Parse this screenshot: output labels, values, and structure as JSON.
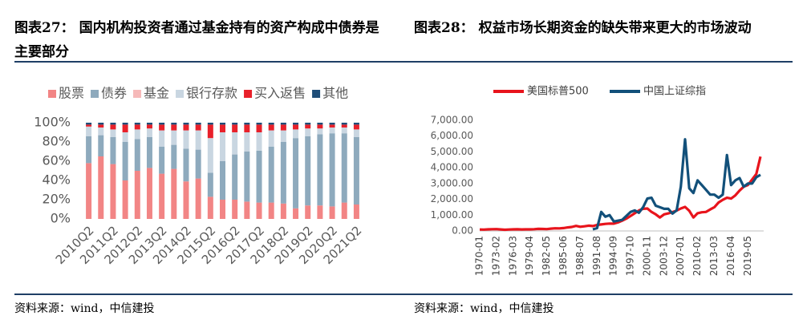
{
  "chart_data": [
    {
      "type": "bar",
      "stacked": true,
      "title": "图表27： 国内机构投资者通过基金持有的资产构成中债券是主要部分",
      "source": "资料来源：wind，中信建投",
      "categories": [
        "2010Q2",
        null,
        "2011Q2",
        null,
        "2012Q2",
        null,
        "2013Q2",
        null,
        "2014Q2",
        null,
        "2015Q2",
        null,
        "2016Q2",
        null,
        "2017Q2",
        null,
        "2018Q2",
        null,
        "2019Q2",
        null,
        "2020Q2",
        null,
        "2021Q2"
      ],
      "series": [
        {
          "name": "股票",
          "color": "#f28585",
          "values": [
            58,
            65,
            57,
            40,
            50,
            53,
            47,
            52,
            39,
            42,
            23,
            20,
            20,
            18,
            17,
            17,
            16,
            11,
            14,
            14,
            13,
            17,
            15
          ]
        },
        {
          "name": "债券",
          "color": "#8eaabd",
          "values": [
            28,
            22,
            28,
            40,
            33,
            32,
            28,
            25,
            34,
            30,
            25,
            40,
            47,
            52,
            54,
            58,
            64,
            73,
            72,
            74,
            76,
            72,
            70
          ]
        },
        {
          "name": "基金",
          "color": "#f6b9b9",
          "values": [
            0,
            0,
            0,
            0,
            0,
            0,
            0,
            0,
            0,
            0,
            0,
            0,
            0,
            0,
            0,
            0,
            0,
            0,
            0,
            0,
            0,
            0,
            0
          ]
        },
        {
          "name": "银行存款",
          "color": "#c9d6e1",
          "values": [
            10,
            8,
            8,
            10,
            10,
            9,
            17,
            15,
            19,
            20,
            36,
            30,
            23,
            20,
            19,
            17,
            12,
            9,
            8,
            6,
            6,
            6,
            8
          ]
        },
        {
          "name": "买入返售",
          "color": "#e8202a",
          "values": [
            2,
            3,
            5,
            8,
            5,
            4,
            6,
            6,
            6,
            6,
            14,
            8,
            8,
            8,
            8,
            6,
            6,
            5,
            4,
            4,
            3,
            3,
            5
          ]
        },
        {
          "name": "其他",
          "color": "#1f4e79",
          "values": [
            2,
            2,
            2,
            2,
            2,
            2,
            2,
            2,
            2,
            2,
            2,
            2,
            2,
            2,
            2,
            2,
            2,
            2,
            2,
            2,
            2,
            2,
            2
          ]
        }
      ],
      "ylim": [
        0,
        100
      ],
      "yticks": [
        {
          "value": 0,
          "label": "0%"
        },
        {
          "value": 20,
          "label": "20%"
        },
        {
          "value": 40,
          "label": "40%"
        },
        {
          "value": 60,
          "label": "60%"
        },
        {
          "value": 80,
          "label": "80%"
        },
        {
          "value": 100,
          "label": "100%"
        }
      ],
      "grid": false
    },
    {
      "type": "line",
      "title": "图表28： 权益市场长期资金的缺失带来更大的市场波动",
      "source": "资料来源：wind，中信建投",
      "categories": [
        "1970-01",
        null,
        null,
        null,
        "1973-02",
        null,
        null,
        null,
        "1976-03",
        null,
        null,
        null,
        "1979-04",
        null,
        null,
        null,
        "1982-05",
        null,
        null,
        null,
        "1985-06",
        null,
        null,
        null,
        "1988-07",
        null,
        null,
        null,
        "1991-08",
        null,
        null,
        null,
        "1994-09",
        null,
        null,
        null,
        "1997-10",
        null,
        null,
        null,
        "2000-11",
        null,
        null,
        null,
        "2003-12",
        null,
        null,
        null,
        "2007-01",
        null,
        null,
        null,
        "2010-02",
        null,
        null,
        null,
        "2013-03",
        null,
        null,
        null,
        "2016-04",
        null,
        null,
        null,
        "2019-05",
        null,
        null,
        null
      ],
      "series": [
        {
          "name": "美国标普500",
          "color": "#e8141c",
          "values": [
            90,
            85,
            100,
            110,
            115,
            95,
            75,
            90,
            100,
            105,
            98,
            100,
            102,
            110,
            130,
            125,
            115,
            145,
            165,
            160,
            185,
            225,
            255,
            320,
            265,
            295,
            335,
            310,
            380,
            410,
            445,
            465,
            460,
            540,
            650,
            780,
            950,
            1120,
            1300,
            1400,
            1420,
            1200,
            1050,
            850,
            1050,
            1110,
            1190,
            1290,
            1420,
            1520,
            1280,
            850,
            1120,
            1180,
            1200,
            1360,
            1500,
            1800,
            1970,
            2100,
            2050,
            2250,
            2550,
            2800,
            2900,
            3250,
            3600,
            4700
          ]
        },
        {
          "name": "中国上证综指",
          "color": "#12507a",
          "values": [
            null,
            null,
            null,
            null,
            null,
            null,
            null,
            null,
            null,
            null,
            null,
            null,
            null,
            null,
            null,
            null,
            null,
            null,
            null,
            null,
            null,
            null,
            null,
            null,
            null,
            null,
            null,
            100,
            180,
            1200,
            900,
            1000,
            600,
            650,
            700,
            950,
            1200,
            1300,
            1150,
            1500,
            2050,
            2100,
            1600,
            1500,
            1400,
            1400,
            1100,
            1300,
            2800,
            5800,
            2700,
            2400,
            3200,
            2900,
            2600,
            2300,
            2300,
            2100,
            2300,
            4800,
            2900,
            3200,
            3350,
            2800,
            3000,
            3000,
            3400,
            3550
          ]
        }
      ],
      "ylim": [
        0,
        7000
      ],
      "yticks": [
        {
          "value": 0,
          "label": "0.00"
        },
        {
          "value": 1000,
          "label": "1,000.00"
        },
        {
          "value": 2000,
          "label": "2,000.00"
        },
        {
          "value": 3000,
          "label": "3,000.00"
        },
        {
          "value": 4000,
          "label": "4,000.00"
        },
        {
          "value": 5000,
          "label": "5,000.00"
        },
        {
          "value": 6000,
          "label": "6,000.00"
        },
        {
          "value": 7000,
          "label": "7,000.00"
        }
      ],
      "grid": false
    }
  ]
}
